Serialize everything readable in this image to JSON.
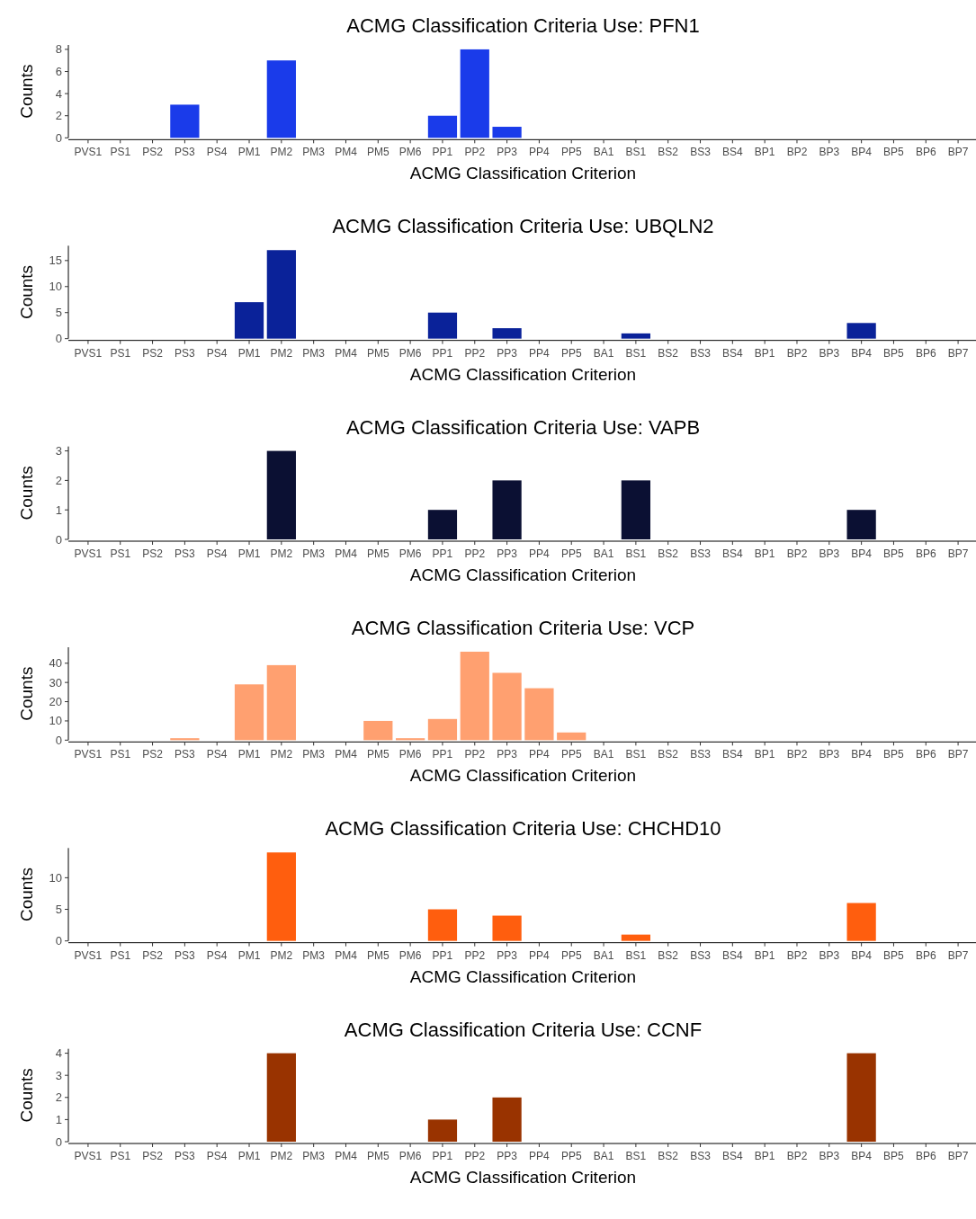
{
  "chart_data": [
    {
      "type": "bar",
      "title": "ACMG Classification Criteria Use: PFN1",
      "xlabel": "ACMG Classification Criterion",
      "ylabel": "Counts",
      "categories": [
        "PVS1",
        "PS1",
        "PS2",
        "PS3",
        "PS4",
        "PM1",
        "PM2",
        "PM3",
        "PM4",
        "PM5",
        "PM6",
        "PP1",
        "PP2",
        "PP3",
        "PP4",
        "PP5",
        "BA1",
        "BS1",
        "BS2",
        "BS3",
        "BS4",
        "BP1",
        "BP2",
        "BP3",
        "BP4",
        "BP5",
        "BP6",
        "BP7"
      ],
      "values": [
        0,
        0,
        0,
        3,
        0,
        0,
        7,
        0,
        0,
        0,
        0,
        2,
        8,
        1,
        0,
        0,
        0,
        0,
        0,
        0,
        0,
        0,
        0,
        0,
        0,
        0,
        0,
        0
      ],
      "color": "#1a3bea",
      "ylim": [
        0,
        8.4
      ],
      "yticks": [
        0,
        2,
        4,
        6,
        8
      ]
    },
    {
      "type": "bar",
      "title": "ACMG Classification Criteria Use: UBQLN2",
      "xlabel": "ACMG Classification Criterion",
      "ylabel": "Counts",
      "categories": [
        "PVS1",
        "PS1",
        "PS2",
        "PS3",
        "PS4",
        "PM1",
        "PM2",
        "PM3",
        "PM4",
        "PM5",
        "PM6",
        "PP1",
        "PP2",
        "PP3",
        "PP4",
        "PP5",
        "BA1",
        "BS1",
        "BS2",
        "BS3",
        "BS4",
        "BP1",
        "BP2",
        "BP3",
        "BP4",
        "BP5",
        "BP6",
        "BP7"
      ],
      "values": [
        0,
        0,
        0,
        0,
        0,
        7,
        17,
        0,
        0,
        0,
        0,
        5,
        0,
        2,
        0,
        0,
        0,
        1,
        0,
        0,
        0,
        0,
        0,
        0,
        3,
        0,
        0,
        0
      ],
      "color": "#0a2299",
      "ylim": [
        0,
        17.85
      ],
      "yticks": [
        0,
        5,
        10,
        15
      ]
    },
    {
      "type": "bar",
      "title": "ACMG Classification Criteria Use: VAPB",
      "xlabel": "ACMG Classification Criterion",
      "ylabel": "Counts",
      "categories": [
        "PVS1",
        "PS1",
        "PS2",
        "PS3",
        "PS4",
        "PM1",
        "PM2",
        "PM3",
        "PM4",
        "PM5",
        "PM6",
        "PP1",
        "PP2",
        "PP3",
        "PP4",
        "PP5",
        "BA1",
        "BS1",
        "BS2",
        "BS3",
        "BS4",
        "BP1",
        "BP2",
        "BP3",
        "BP4",
        "BP5",
        "BP6",
        "BP7"
      ],
      "values": [
        0,
        0,
        0,
        0,
        0,
        0,
        3,
        0,
        0,
        0,
        0,
        1,
        0,
        2,
        0,
        0,
        0,
        2,
        0,
        0,
        0,
        0,
        0,
        0,
        1,
        0,
        0,
        0
      ],
      "color": "#0b1033",
      "ylim": [
        0,
        3.15
      ],
      "yticks": [
        0,
        1,
        2,
        3
      ]
    },
    {
      "type": "bar",
      "title": "ACMG Classification Criteria Use: VCP",
      "xlabel": "ACMG Classification Criterion",
      "ylabel": "Counts",
      "categories": [
        "PVS1",
        "PS1",
        "PS2",
        "PS3",
        "PS4",
        "PM1",
        "PM2",
        "PM3",
        "PM4",
        "PM5",
        "PM6",
        "PP1",
        "PP2",
        "PP3",
        "PP4",
        "PP5",
        "BA1",
        "BS1",
        "BS2",
        "BS3",
        "BS4",
        "BP1",
        "BP2",
        "BP3",
        "BP4",
        "BP5",
        "BP6",
        "BP7"
      ],
      "values": [
        0,
        0,
        0,
        1,
        0,
        29,
        39,
        0,
        0,
        10,
        1,
        11,
        46,
        35,
        27,
        4,
        0,
        0,
        0,
        0,
        0,
        0,
        0,
        0,
        0,
        0,
        0,
        0
      ],
      "color": "#ffa070",
      "ylim": [
        0,
        48.3
      ],
      "yticks": [
        0,
        10,
        20,
        30,
        40
      ]
    },
    {
      "type": "bar",
      "title": "ACMG Classification Criteria Use: CHCHD10",
      "xlabel": "ACMG Classification Criterion",
      "ylabel": "Counts",
      "categories": [
        "PVS1",
        "PS1",
        "PS2",
        "PS3",
        "PS4",
        "PM1",
        "PM2",
        "PM3",
        "PM4",
        "PM5",
        "PM6",
        "PP1",
        "PP2",
        "PP3",
        "PP4",
        "PP5",
        "BA1",
        "BS1",
        "BS2",
        "BS3",
        "BS4",
        "BP1",
        "BP2",
        "BP3",
        "BP4",
        "BP5",
        "BP6",
        "BP7"
      ],
      "values": [
        0,
        0,
        0,
        0,
        0,
        0,
        14,
        0,
        0,
        0,
        0,
        5,
        0,
        4,
        0,
        0,
        0,
        1,
        0,
        0,
        0,
        0,
        0,
        0,
        6,
        0,
        0,
        0
      ],
      "color": "#ff5e0e",
      "ylim": [
        0,
        14.7
      ],
      "yticks": [
        0,
        5,
        10
      ]
    },
    {
      "type": "bar",
      "title": "ACMG Classification Criteria Use: CCNF",
      "xlabel": "ACMG Classification Criterion",
      "ylabel": "Counts",
      "categories": [
        "PVS1",
        "PS1",
        "PS2",
        "PS3",
        "PS4",
        "PM1",
        "PM2",
        "PM3",
        "PM4",
        "PM5",
        "PM6",
        "PP1",
        "PP2",
        "PP3",
        "PP4",
        "PP5",
        "BA1",
        "BS1",
        "BS2",
        "BS3",
        "BS4",
        "BP1",
        "BP2",
        "BP3",
        "BP4",
        "BP5",
        "BP6",
        "BP7"
      ],
      "values": [
        0,
        0,
        0,
        0,
        0,
        0,
        4,
        0,
        0,
        0,
        0,
        1,
        0,
        2,
        0,
        0,
        0,
        0,
        0,
        0,
        0,
        0,
        0,
        0,
        4,
        0,
        0,
        0
      ],
      "color": "#993300",
      "ylim": [
        0,
        4.2
      ],
      "yticks": [
        0,
        1,
        2,
        3,
        4
      ]
    }
  ]
}
